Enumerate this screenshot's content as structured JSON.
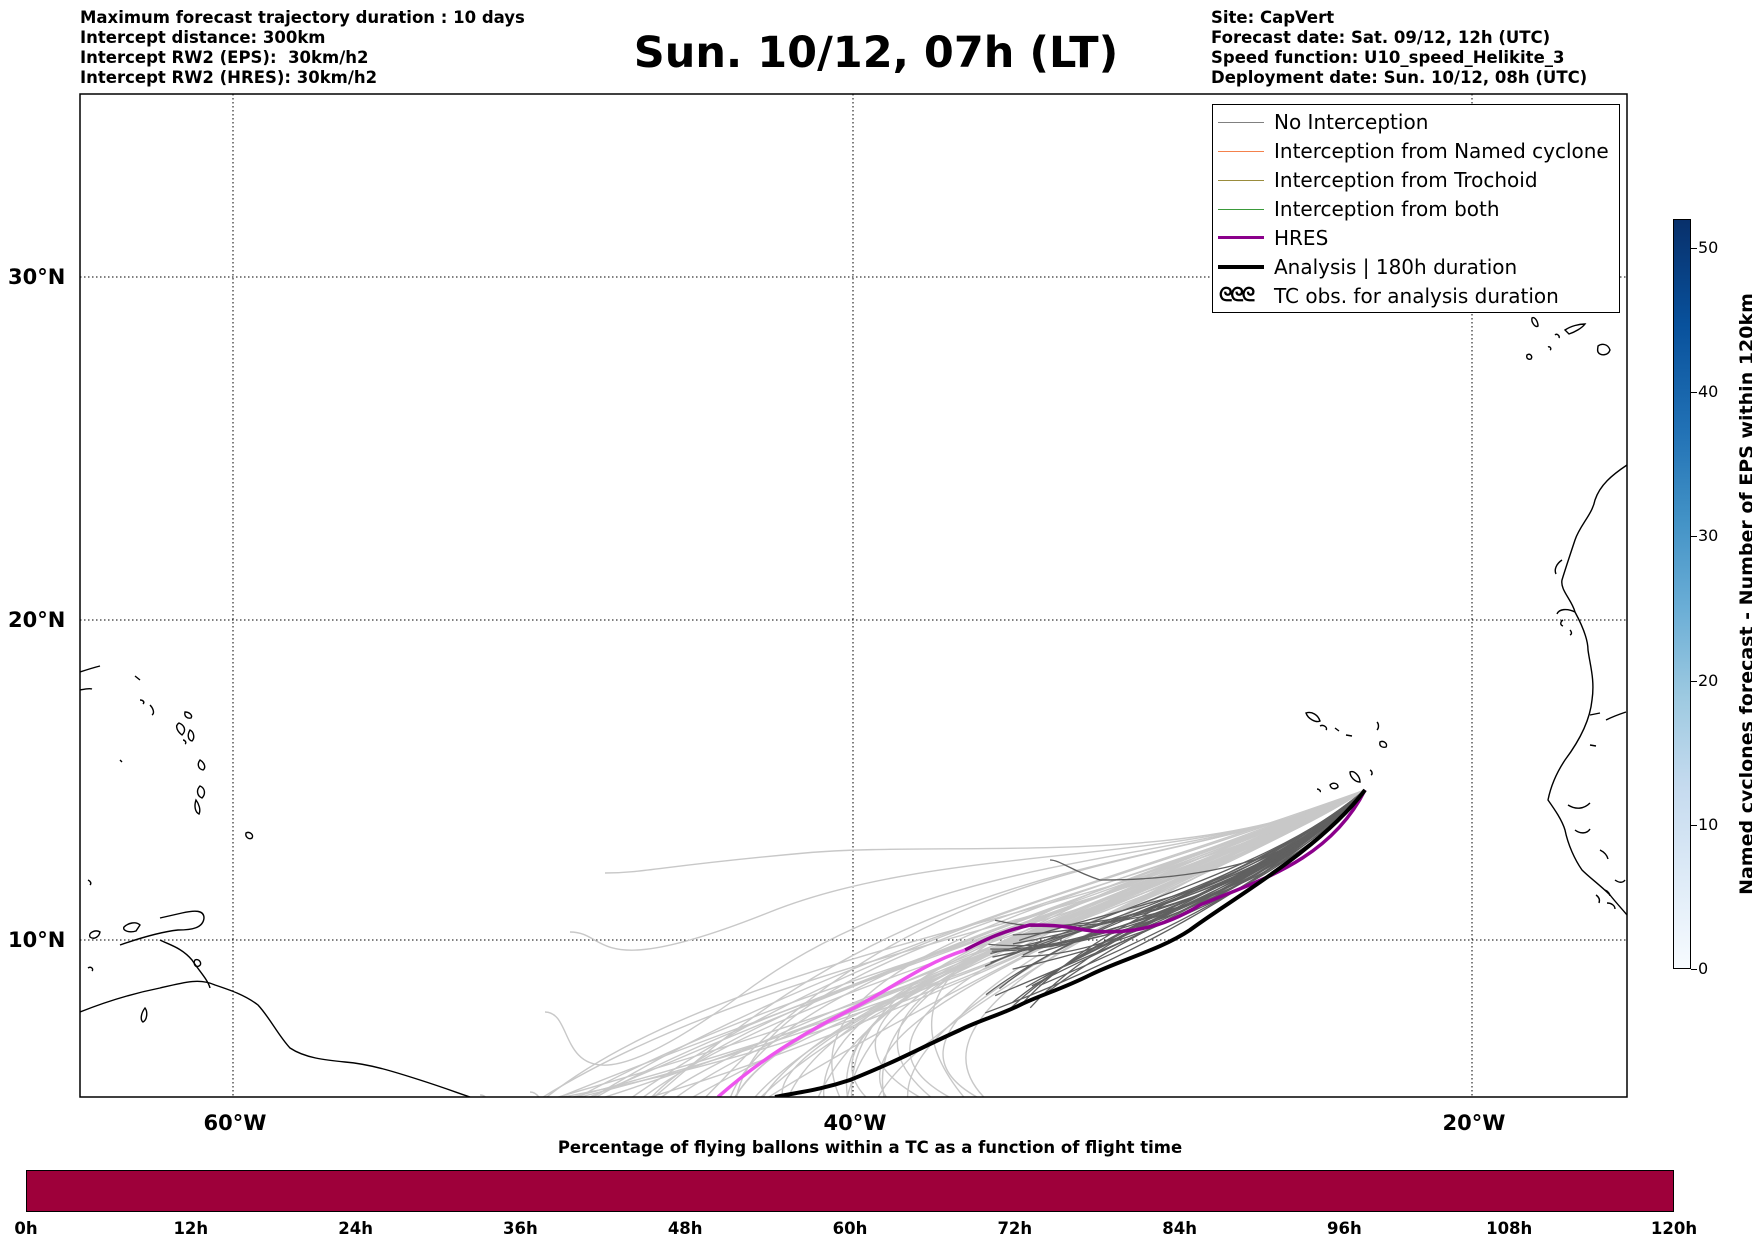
{
  "header_left": [
    "Maximum forecast trajectory duration : 10 days",
    "Intercept distance: 300km",
    "Intercept RW2 (EPS):  30km/h2",
    "Intercept RW2 (HRES): 30km/h2"
  ],
  "title": "Sun. 10/12, 07h (LT)",
  "header_right": [
    "Site: CapVert",
    "Forecast date: Sat. 09/12, 12h (UTC)",
    "Speed function: U10_speed_Helikite_3",
    "Deployment date: Sun. 10/12, 08h (UTC)"
  ],
  "map": {
    "lon_range": [
      -65,
      -15
    ],
    "lat_range": [
      5.4,
      34.6
    ],
    "lat_labels": [
      "30°N",
      "20°N",
      "10°N"
    ],
    "lon_labels": [
      "60°W",
      "40°W",
      "20°W"
    ],
    "gridlines": true
  },
  "legend": [
    {
      "label": "No Interception",
      "color": "#808080"
    },
    {
      "label": "Interception from Named cyclone",
      "color": "#f4814c"
    },
    {
      "label": "Interception from Trochoid",
      "color": "#9a8c3c"
    },
    {
      "label": "Interception from both",
      "color": "#3a9a3a"
    },
    {
      "label": "HRES",
      "color": "#8b008b"
    },
    {
      "label": "Analysis | 180h duration",
      "color": "#000000"
    },
    {
      "label": "TC obs. for analysis duration",
      "icon": "cyclone-symbols-icon",
      "symbol": "ᘓᘓᘓ"
    }
  ],
  "colorbar_vertical": {
    "label": "Named cyclones forecast - Number of EPS within 120km",
    "ticks": [
      "0",
      "10",
      "20",
      "30",
      "40",
      "50"
    ],
    "range": [
      0,
      52
    ]
  },
  "colorbar_horizontal": {
    "title": "Percentage of flying ballons within a TC as a function of flight time",
    "ticks": [
      "0h",
      "12h",
      "24h",
      "36h",
      "48h",
      "60h",
      "72h",
      "84h",
      "96h",
      "108h",
      "120h"
    ],
    "fill_color": "#9e003a"
  }
}
